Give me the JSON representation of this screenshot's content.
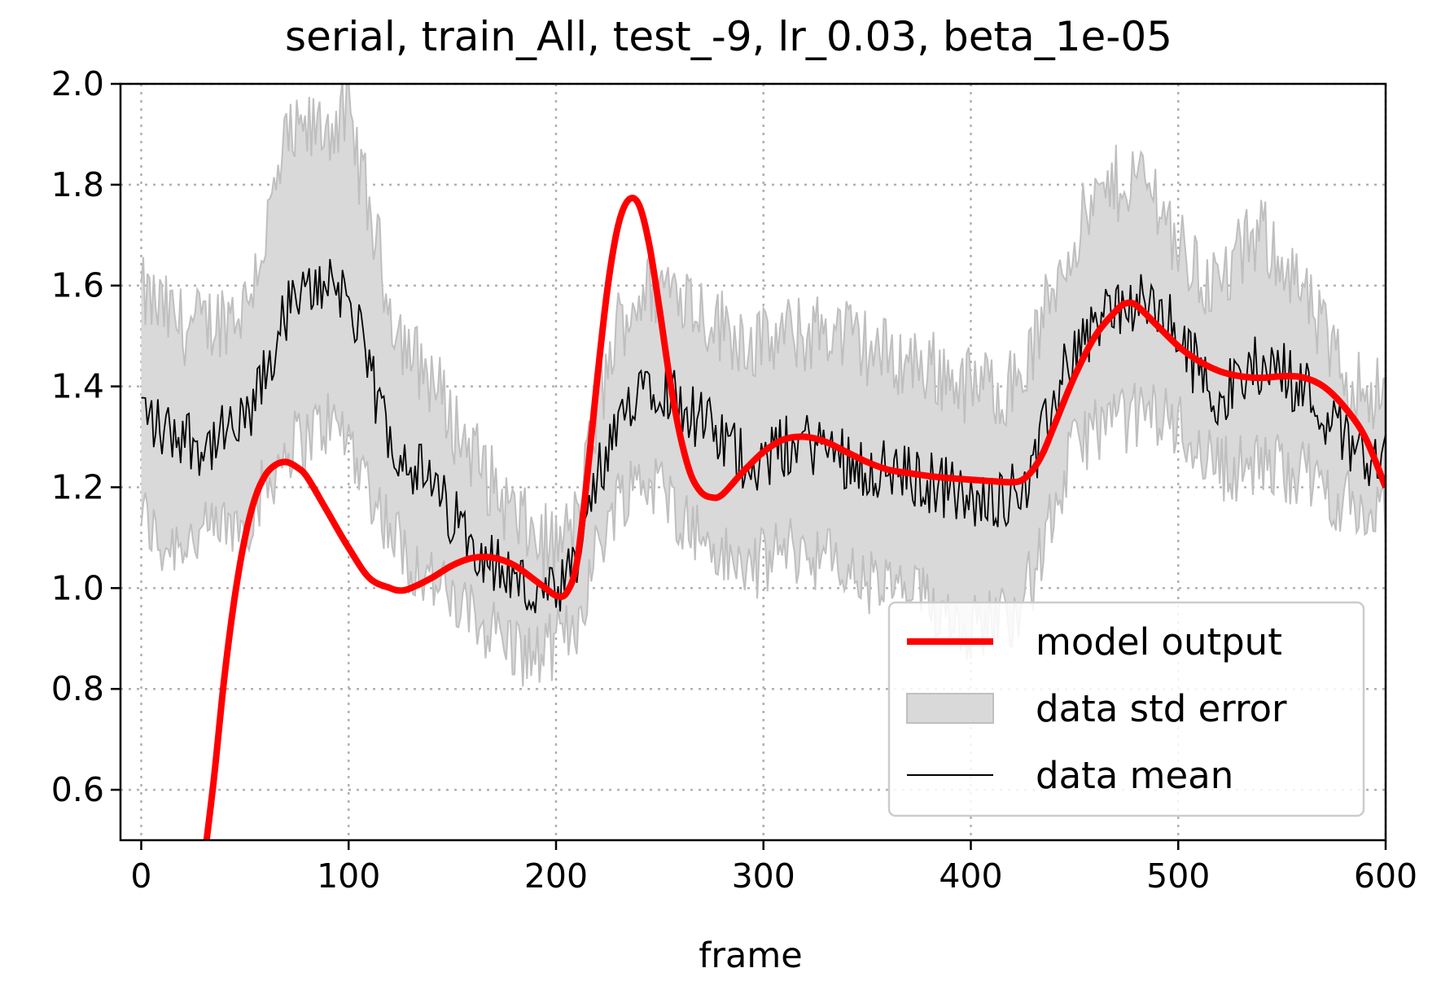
{
  "chart_data": {
    "type": "line",
    "title": "serial, train_All, test_-9, lr_0.03, beta_1e-05",
    "xlabel": "frame",
    "ylabel": "",
    "xlim": [
      -10,
      600
    ],
    "ylim": [
      0.5,
      2.0
    ],
    "xticks": [
      0,
      100,
      200,
      300,
      400,
      500,
      600
    ],
    "xtick_labels": [
      "0",
      "100",
      "200",
      "300",
      "400",
      "500",
      "600"
    ],
    "yticks": [
      0.6,
      0.8,
      1.0,
      1.2,
      1.4,
      1.6,
      1.8,
      2.0
    ],
    "ytick_labels": [
      "0.6",
      "0.8",
      "1.0",
      "1.2",
      "1.4",
      "1.6",
      "1.8",
      "2.0"
    ],
    "grid": true,
    "legend_position": "lower-right",
    "colors": {
      "model": "#ff0000",
      "band": "#d9d9d9",
      "band_edge": "#bfbfbf",
      "mean": "#000000",
      "grid": "#b0b0b0"
    },
    "series": [
      {
        "name": "model output",
        "kind": "line",
        "x": [
          30,
          35,
          40,
          45,
          50,
          55,
          60,
          65,
          70,
          75,
          80,
          90,
          100,
          110,
          120,
          125,
          130,
          140,
          150,
          160,
          170,
          180,
          190,
          195,
          200,
          205,
          210,
          215,
          220,
          225,
          230,
          235,
          240,
          245,
          250,
          255,
          260,
          265,
          270,
          275,
          280,
          290,
          300,
          310,
          320,
          330,
          340,
          350,
          360,
          370,
          380,
          390,
          400,
          410,
          420,
          425,
          430,
          435,
          440,
          450,
          460,
          470,
          475,
          480,
          490,
          500,
          510,
          520,
          530,
          540,
          550,
          560,
          570,
          580,
          590,
          600
        ],
        "y": [
          0.45,
          0.62,
          0.82,
          0.98,
          1.1,
          1.18,
          1.225,
          1.245,
          1.25,
          1.24,
          1.22,
          1.15,
          1.08,
          1.02,
          1.0,
          0.995,
          1.0,
          1.02,
          1.045,
          1.06,
          1.06,
          1.045,
          1.015,
          1.0,
          0.985,
          0.99,
          1.05,
          1.22,
          1.42,
          1.6,
          1.72,
          1.77,
          1.76,
          1.68,
          1.55,
          1.41,
          1.3,
          1.225,
          1.19,
          1.18,
          1.185,
          1.23,
          1.27,
          1.295,
          1.3,
          1.29,
          1.27,
          1.25,
          1.235,
          1.228,
          1.222,
          1.218,
          1.215,
          1.212,
          1.21,
          1.215,
          1.235,
          1.27,
          1.32,
          1.42,
          1.5,
          1.55,
          1.565,
          1.56,
          1.52,
          1.48,
          1.45,
          1.43,
          1.42,
          1.417,
          1.42,
          1.418,
          1.4,
          1.36,
          1.3,
          1.2
        ]
      },
      {
        "name": "data std error",
        "kind": "band",
        "x": [
          0,
          10,
          20,
          30,
          40,
          50,
          60,
          70,
          80,
          90,
          100,
          110,
          120,
          130,
          140,
          150,
          160,
          170,
          180,
          190,
          200,
          210,
          220,
          230,
          240,
          250,
          260,
          270,
          280,
          290,
          300,
          310,
          320,
          330,
          340,
          350,
          360,
          370,
          380,
          390,
          400,
          410,
          420,
          430,
          440,
          450,
          460,
          470,
          480,
          490,
          500,
          510,
          520,
          530,
          540,
          550,
          560,
          570,
          580,
          590,
          600
        ],
        "lower": [
          1.15,
          1.08,
          1.1,
          1.1,
          1.12,
          1.13,
          1.2,
          1.28,
          1.3,
          1.33,
          1.3,
          1.2,
          1.12,
          1.05,
          1.02,
          0.97,
          0.94,
          0.92,
          0.88,
          0.86,
          0.89,
          0.93,
          1.08,
          1.18,
          1.22,
          1.2,
          1.15,
          1.1,
          1.06,
          1.04,
          1.05,
          1.08,
          1.07,
          1.06,
          1.03,
          1.01,
          1.0,
          0.99,
          0.97,
          0.95,
          0.92,
          0.94,
          0.95,
          1.02,
          1.15,
          1.28,
          1.32,
          1.33,
          1.34,
          1.35,
          1.32,
          1.28,
          1.24,
          1.24,
          1.24,
          1.24,
          1.23,
          1.2,
          1.17,
          1.15,
          1.13
        ],
        "upper": [
          1.58,
          1.55,
          1.52,
          1.52,
          1.54,
          1.56,
          1.7,
          1.88,
          1.9,
          1.92,
          1.93,
          1.75,
          1.56,
          1.46,
          1.42,
          1.33,
          1.27,
          1.2,
          1.14,
          1.1,
          1.08,
          1.13,
          1.35,
          1.52,
          1.58,
          1.6,
          1.6,
          1.55,
          1.52,
          1.5,
          1.48,
          1.5,
          1.5,
          1.52,
          1.5,
          1.48,
          1.46,
          1.45,
          1.44,
          1.42,
          1.4,
          1.4,
          1.4,
          1.47,
          1.6,
          1.7,
          1.76,
          1.8,
          1.82,
          1.78,
          1.68,
          1.62,
          1.6,
          1.66,
          1.7,
          1.66,
          1.58,
          1.5,
          1.42,
          1.4,
          1.38
        ]
      },
      {
        "name": "data mean",
        "kind": "line",
        "x": [
          0,
          10,
          20,
          30,
          40,
          50,
          60,
          70,
          80,
          90,
          100,
          110,
          120,
          130,
          140,
          150,
          160,
          170,
          180,
          190,
          200,
          210,
          220,
          230,
          240,
          250,
          260,
          270,
          280,
          290,
          300,
          310,
          320,
          330,
          340,
          350,
          360,
          370,
          380,
          390,
          400,
          410,
          420,
          430,
          440,
          450,
          460,
          470,
          480,
          490,
          500,
          510,
          520,
          530,
          540,
          550,
          560,
          570,
          580,
          590,
          600
        ],
        "y": [
          1.36,
          1.31,
          1.31,
          1.28,
          1.3,
          1.32,
          1.42,
          1.55,
          1.58,
          1.62,
          1.58,
          1.42,
          1.3,
          1.25,
          1.2,
          1.14,
          1.1,
          1.05,
          1.02,
          0.98,
          0.98,
          1.04,
          1.22,
          1.3,
          1.42,
          1.41,
          1.37,
          1.33,
          1.29,
          1.26,
          1.25,
          1.28,
          1.29,
          1.28,
          1.26,
          1.24,
          1.23,
          1.22,
          1.21,
          1.2,
          1.16,
          1.18,
          1.19,
          1.23,
          1.37,
          1.48,
          1.52,
          1.56,
          1.56,
          1.55,
          1.5,
          1.43,
          1.38,
          1.41,
          1.45,
          1.43,
          1.4,
          1.35,
          1.3,
          1.27,
          1.25
        ]
      }
    ]
  }
}
